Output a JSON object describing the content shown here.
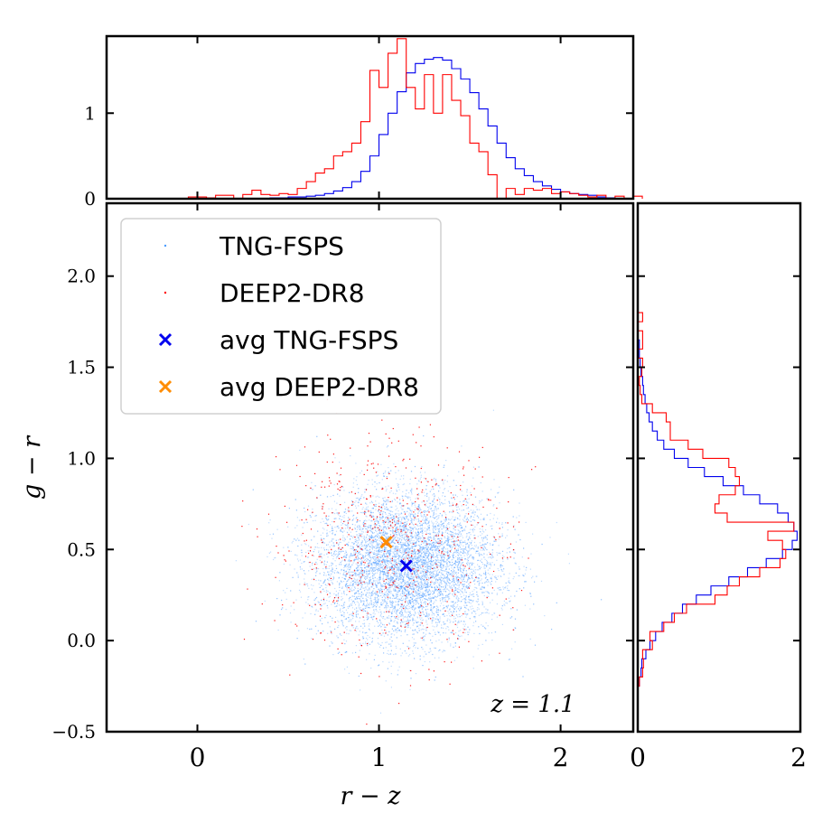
{
  "chart_data": {
    "type": "scatter",
    "annotation": "z = 1.1",
    "xlabel": "r − z",
    "ylabel": "g − r",
    "xlim": [
      -0.5,
      2.4
    ],
    "ylim": [
      -0.5,
      2.4
    ],
    "x_ticks": [
      0,
      1,
      2
    ],
    "y_ticks": [
      -0.5,
      0.0,
      0.5,
      1.0,
      1.5,
      2.0
    ],
    "y_tick_labels": [
      "−0.5",
      "0.0",
      "0.5",
      "1.0",
      "1.5",
      "2.0"
    ],
    "legend_placement": "upper-left",
    "legend": [
      {
        "label": "TNG-FSPS",
        "marker": "dot",
        "color": "#4a9cff"
      },
      {
        "label": "DEEP2-DR8",
        "marker": "dot",
        "color": "#ff0000"
      },
      {
        "label": "avg TNG-FSPS",
        "marker": "x",
        "color": "#0000ee"
      },
      {
        "label": "avg DEEP2-DR8",
        "marker": "x",
        "color": "#ff8c00"
      }
    ],
    "averages": [
      {
        "name": "avg TNG-FSPS",
        "x": 1.15,
        "y": 0.41,
        "color": "#0000ee"
      },
      {
        "name": "avg DEEP2-DR8",
        "x": 1.04,
        "y": 0.54,
        "color": "#ff8c00"
      }
    ],
    "scatter_distribution": {
      "TNG-FSPS": {
        "mean_x": 1.15,
        "mean_y": 0.41,
        "sd_x": 0.25,
        "sd_y": 0.2,
        "corr": 0.0,
        "color": "#4a9cff",
        "n_shown": 9000
      },
      "DEEP2-DR8": {
        "mean_x": 1.04,
        "mean_y": 0.54,
        "sd_x": 0.33,
        "sd_y": 0.3,
        "corr": 0.0,
        "color": "#ff0000",
        "n_shown": 550
      }
    },
    "top_histogram": {
      "ylim": [
        0,
        1.9
      ],
      "y_ticks": [
        0,
        1
      ],
      "bin_edges_start": -0.05,
      "bin_width": 0.05,
      "TNG-FSPS": [
        0,
        0,
        0,
        0,
        0,
        0,
        0,
        0,
        0,
        0.01,
        0.01,
        0.02,
        0.02,
        0.03,
        0.04,
        0.06,
        0.09,
        0.13,
        0.2,
        0.32,
        0.5,
        0.75,
        1.0,
        1.25,
        1.47,
        1.58,
        1.63,
        1.65,
        1.62,
        1.52,
        1.4,
        1.24,
        1.05,
        0.85,
        0.65,
        0.48,
        0.35,
        0.27,
        0.2,
        0.15,
        0.11,
        0.08,
        0.06,
        0.05,
        0.04,
        0.02,
        0.01
      ],
      "DEEP2-DR8": [
        0.02,
        0.02,
        0.01,
        0.04,
        0.04,
        0.0,
        0.05,
        0.1,
        0.05,
        0.04,
        0.06,
        0.05,
        0.12,
        0.2,
        0.3,
        0.35,
        0.5,
        0.55,
        0.65,
        0.9,
        1.5,
        1.3,
        1.7,
        1.87,
        1.3,
        1.05,
        1.45,
        1.0,
        1.45,
        1.15,
        0.97,
        0.65,
        0.55,
        0.28,
        0.0,
        0.12,
        0.05,
        0.12,
        0.1,
        0.12,
        0.06,
        0.08,
        0.06,
        0.04,
        0.02,
        0.04,
        0.0,
        0.03,
        0.0,
        0.03
      ]
    },
    "right_histogram": {
      "xlim": [
        0,
        2
      ],
      "x_ticks": [
        0,
        2
      ],
      "bin_edges_start": -0.25,
      "bin_width": 0.05,
      "TNG-FSPS": [
        0.02,
        0.04,
        0.05,
        0.1,
        0.15,
        0.22,
        0.3,
        0.42,
        0.55,
        0.72,
        0.9,
        1.12,
        1.35,
        1.58,
        1.78,
        1.9,
        1.96,
        1.92,
        1.85,
        1.72,
        1.5,
        1.3,
        1.05,
        0.82,
        0.62,
        0.45,
        0.32,
        0.24,
        0.18,
        0.14,
        0.11,
        0.09,
        0.07,
        0.06,
        0.04,
        0.03,
        0.02,
        0.02
      ],
      "DEEP2-DR8": [
        0.02,
        0.06,
        0.07,
        0.06,
        0.18,
        0.15,
        0.32,
        0.45,
        0.6,
        0.95,
        1.1,
        1.25,
        1.5,
        1.75,
        1.82,
        1.78,
        1.6,
        1.92,
        1.1,
        0.95,
        1.0,
        1.2,
        1.25,
        1.2,
        1.12,
        0.8,
        0.62,
        0.4,
        0.4,
        0.35,
        0.18,
        0.05,
        0.03,
        0.02,
        0.05,
        0.06,
        0.0,
        0.06,
        0.06,
        0.0,
        0.06
      ]
    }
  }
}
